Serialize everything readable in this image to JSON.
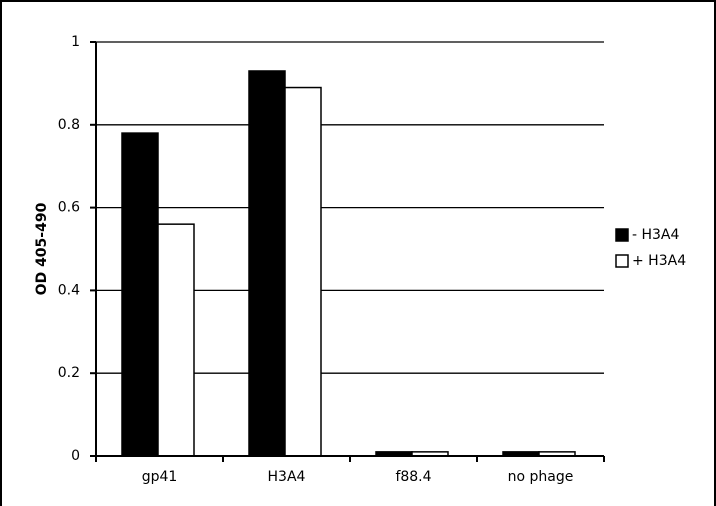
{
  "chart_data": {
    "type": "bar",
    "categories": [
      "gp41",
      "H3A4",
      "f88.4",
      "no phage"
    ],
    "series": [
      {
        "name": "- H3A4",
        "color": "#000000",
        "values": [
          0.78,
          0.93,
          0.01,
          0.01
        ]
      },
      {
        "name": "+ H3A4",
        "color": "#ffffff",
        "values": [
          0.56,
          0.89,
          0.01,
          0.01
        ]
      }
    ],
    "ylabel": "OD 405-490",
    "ylim": [
      0,
      1
    ],
    "yticks": [
      0,
      0.2,
      0.4,
      0.6,
      0.8,
      1
    ],
    "ytick_labels": [
      "0",
      "0.2",
      "0.4",
      "0.6",
      "0.8",
      "1"
    ],
    "grid": true,
    "legend_position": "right"
  }
}
